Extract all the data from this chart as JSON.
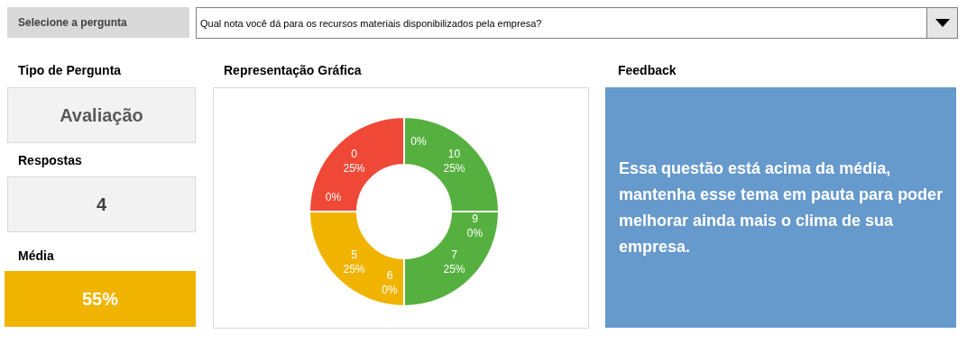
{
  "chart_data": [
    {
      "type": "other",
      "annotations": [
        "Selecione a pergunta",
        "Qual nota você dá para os recursos materiais disponibilizados pela empresa?"
      ]
    },
    {
      "type": "other",
      "annotations": [
        "Tipo de Pergunta",
        "Avaliação",
        "Respostas",
        "4",
        "Média",
        "55%"
      ]
    },
    {
      "type": "donut",
      "title": "Representação Gráfica",
      "categories": [
        null,
        "10",
        "9",
        "7",
        "6",
        "5",
        null,
        "0"
      ],
      "values": [
        0,
        25,
        0,
        25,
        0,
        25,
        0,
        25
      ],
      "value_labels": [
        "0%",
        "25%",
        "0%",
        "25%",
        "0%",
        "25%",
        "0%",
        "25%"
      ],
      "colors": [
        "#56b03f",
        "#56b03f",
        "#56b03f",
        "#56b03f",
        "#f0b400",
        "#f0b400",
        "#ef4836",
        "#ef4836"
      ],
      "legend": false
    },
    {
      "type": "other",
      "title": "Feedback",
      "annotations": [
        "Essa questão está acima da média, mantenha esse tema em pauta para poder melhorar ainda mais o clima de sua empresa."
      ]
    }
  ]
}
